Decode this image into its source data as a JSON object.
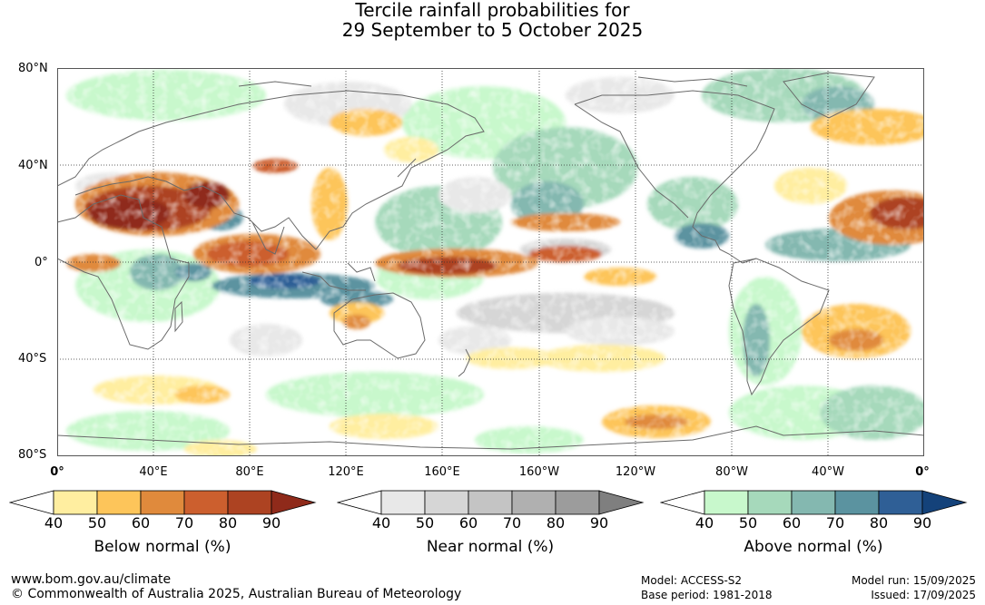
{
  "title": {
    "line1": "Tercile rainfall probabilities for",
    "line2": "29 September to 5 October 2025"
  },
  "map": {
    "lat_labels": [
      "80°N",
      "40°N",
      "0°",
      "40°S",
      "80°S"
    ],
    "lon_labels": [
      "0°",
      "40°E",
      "80°E",
      "120°E",
      "160°E",
      "160°W",
      "120°W",
      "80°W",
      "40°W",
      "0°"
    ],
    "colors": {
      "ocean_base": "#ffffff",
      "gridline": "#333333",
      "coastline": "#6a6a6a"
    }
  },
  "legends": [
    {
      "title": "Below normal (%)",
      "ticks": [
        "40",
        "50",
        "60",
        "70",
        "80",
        "90"
      ],
      "colors": [
        "#ffffff",
        "#ffeea0",
        "#fdc55a",
        "#e08a3c",
        "#cc5f2e",
        "#ad4322",
        "#8f2a1a"
      ]
    },
    {
      "title": "Near normal (%)",
      "ticks": [
        "40",
        "50",
        "60",
        "70",
        "80",
        "90"
      ],
      "colors": [
        "#ffffff",
        "#e8e8e8",
        "#d6d6d6",
        "#c4c4c4",
        "#b0b0b0",
        "#9c9c9c",
        "#7f7f7f"
      ]
    },
    {
      "title": "Above normal (%)",
      "ticks": [
        "40",
        "50",
        "60",
        "70",
        "80",
        "90"
      ],
      "colors": [
        "#ffffff",
        "#c8f8cc",
        "#a6d9bb",
        "#84b8b0",
        "#5b93a0",
        "#2f5f96",
        "#14427a"
      ]
    }
  ],
  "footer": {
    "url": "www.bom.gov.au/climate",
    "copyright": "© Commonwealth of Australia 2025, Australian Bureau of Meteorology",
    "model": "Model: ACCESS-S2",
    "base_period": "Base period: 1981-2018",
    "model_run": "Model run: 15/09/2025",
    "issued": "Issued: 17/09/2025"
  }
}
